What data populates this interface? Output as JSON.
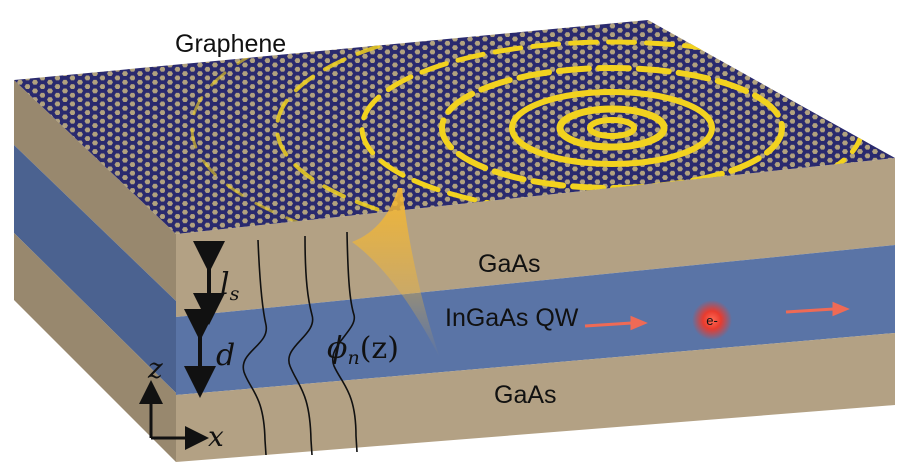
{
  "labels": {
    "graphene": "Graphene",
    "gaas_top": "GaAs",
    "qw": "InGaAs QW",
    "gaas_bottom": "GaAs",
    "electron": "e-"
  },
  "math": {
    "ls_base": "l",
    "ls_sub": "s",
    "d": "d",
    "phi_base": "ϕ",
    "phi_sub": "n",
    "phi_arg": "(z)",
    "axis_z": "z",
    "axis_x": "x"
  },
  "colors": {
    "gaas": "#b3a184",
    "gaas_side": "#98886e",
    "qw": "#5a74a6",
    "qw_side": "#4b6290",
    "graphene_bg": "#2a2a6e",
    "lattice": "#b1a27f",
    "plasmon": "#f2d21f",
    "electron": "#e83b2e",
    "arrow": "#ef6a55"
  }
}
